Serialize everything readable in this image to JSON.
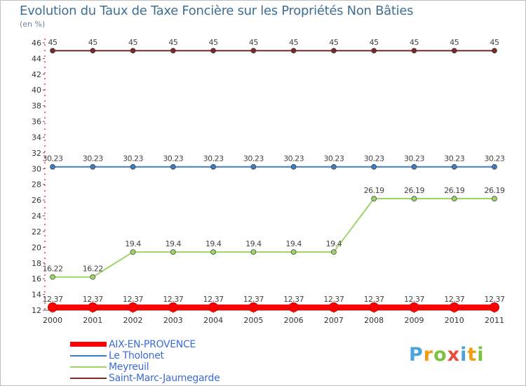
{
  "title": "Evolution du Taux de Taxe Foncière sur les Propriétés Non Bâties",
  "unit_label": "(en %)",
  "logo": {
    "text": "Proxiti",
    "letters": [
      "P",
      "r",
      "o",
      "x",
      "i",
      "t",
      "i"
    ],
    "colors": [
      "#4aa3df",
      "#f39c12",
      "#7cc242",
      "#e74c3c",
      "#4aa3df",
      "#f39c12",
      "#7cc242"
    ]
  },
  "chart_data": {
    "type": "line",
    "title": "Evolution du Taux de Taxe Foncière sur les Propriétés Non Bâties",
    "ylabel": "(en %)",
    "xlabel": "",
    "categories": [
      "2000",
      "2001",
      "2002",
      "2003",
      "2004",
      "2005",
      "2006",
      "2007",
      "2008",
      "2009",
      "2010",
      "2011"
    ],
    "ylim": [
      12,
      46
    ],
    "yticks": [
      12,
      14,
      16,
      18,
      20,
      22,
      24,
      26,
      28,
      30,
      32,
      34,
      36,
      38,
      40,
      42,
      44,
      46
    ],
    "series": [
      {
        "name": "AIX-EN-PROVENCE",
        "color": "#ff0000",
        "values": [
          12.37,
          12.37,
          12.37,
          12.37,
          12.37,
          12.37,
          12.37,
          12.37,
          12.37,
          12.37,
          12.37,
          12.37
        ],
        "labels": [
          "12.37",
          "12.37",
          "12.37",
          "12.37",
          "12.37",
          "12.37",
          "12.37",
          "12.37",
          "12.37",
          "12.37",
          "12.37",
          "12.37"
        ]
      },
      {
        "name": "Le Tholonet",
        "color": "#3d7ebf",
        "values": [
          30.23,
          30.23,
          30.23,
          30.23,
          30.23,
          30.23,
          30.23,
          30.23,
          30.23,
          30.23,
          30.23,
          30.23
        ],
        "labels": [
          "30.23",
          "30.23",
          "30.23",
          "30.23",
          "30.23",
          "30.23",
          "30.23",
          "30.23",
          "30.23",
          "30.23",
          "30.23",
          "30.23"
        ]
      },
      {
        "name": "Meyreuil",
        "color": "#9ed36a",
        "values": [
          16.22,
          16.22,
          19.4,
          19.4,
          19.4,
          19.4,
          19.4,
          19.4,
          26.19,
          26.19,
          26.19,
          26.19
        ],
        "labels": [
          "16.22",
          "16.22",
          "19.4",
          "19.4",
          "19.4",
          "19.4",
          "19.4",
          "19.4",
          "26.19",
          "26.19",
          "26.19",
          "26.19"
        ]
      },
      {
        "name": "Saint-Marc-Jaumegarde",
        "color": "#7a2a2a",
        "values": [
          45,
          45,
          45,
          45,
          45,
          45,
          45,
          45,
          45,
          45,
          45,
          45
        ],
        "labels": [
          "45",
          "45",
          "45",
          "45",
          "45",
          "45",
          "45",
          "45",
          "45",
          "45",
          "45",
          "45"
        ]
      }
    ],
    "legend_position": "bottom-left",
    "grid": false
  }
}
